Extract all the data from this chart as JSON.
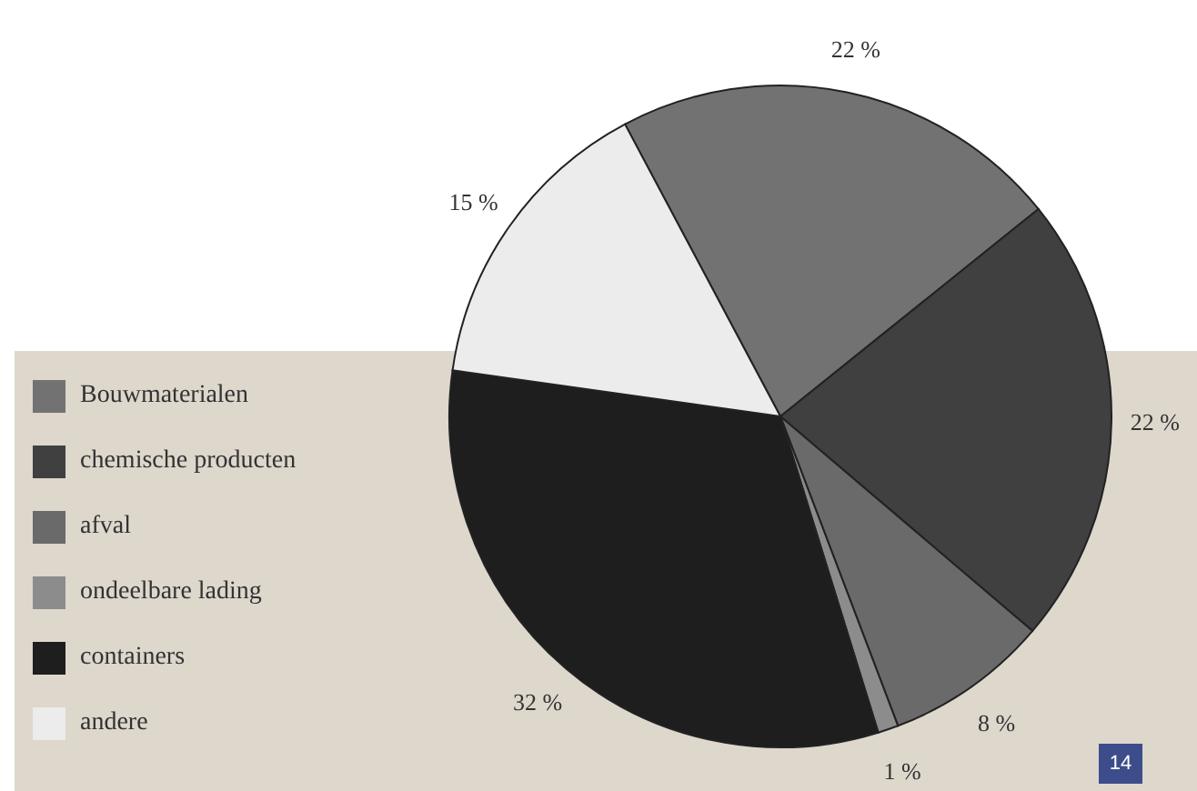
{
  "chart_data": {
    "type": "pie",
    "categories": [
      "Bouwmaterialen",
      "chemische producten",
      "afval",
      "ondeelbare lading",
      "containers",
      "andere"
    ],
    "values": [
      22,
      22,
      8,
      1,
      32,
      15
    ],
    "value_labels": [
      "22 %",
      "22 %",
      "8 %",
      "1 %",
      "32 %",
      "15 %"
    ],
    "colors": [
      "#727272",
      "#404040",
      "#6a6a6a",
      "#8c8c8c",
      "#1e1e1e",
      "#ececec"
    ],
    "legend": "left",
    "annotations": [
      "14"
    ]
  }
}
